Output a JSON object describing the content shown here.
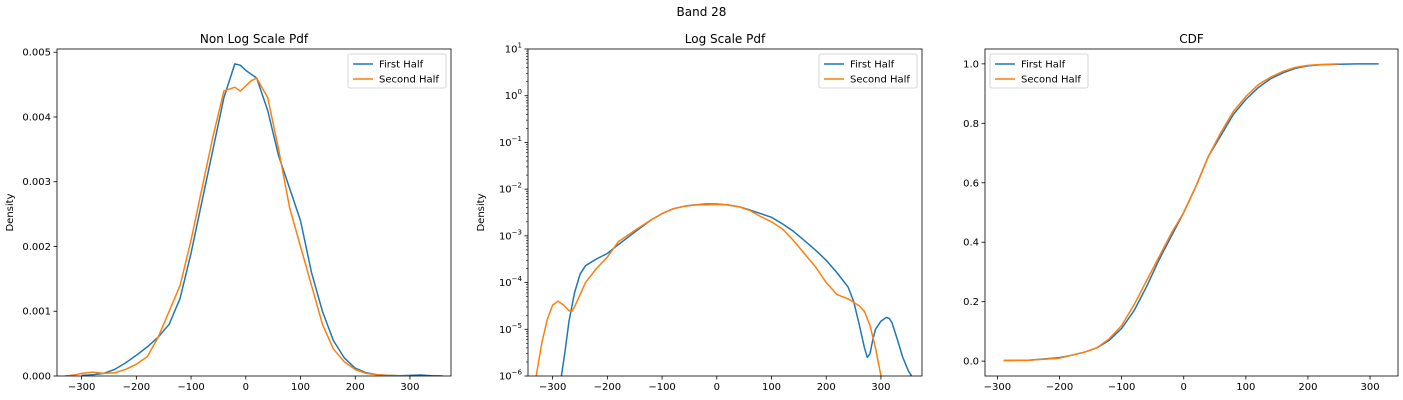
{
  "figure": {
    "title": "Band 28"
  },
  "colors": {
    "first": "#1f77b4",
    "second": "#ff7f0e"
  },
  "chart_data": [
    {
      "type": "line",
      "title": "Non Log Scale Pdf",
      "xlabel": "",
      "ylabel": "Density",
      "xlim": [
        -345,
        375
      ],
      "ylim": [
        0,
        0.00505
      ],
      "yscale": "linear",
      "xticks": [
        -300,
        -200,
        -100,
        0,
        100,
        200,
        300
      ],
      "xtick_labels": [
        "−300",
        "−200",
        "−100",
        "0",
        "100",
        "200",
        "300"
      ],
      "yticks": [
        0,
        0.001,
        0.002,
        0.003,
        0.004,
        0.005
      ],
      "ytick_labels": [
        "0.000",
        "0.001",
        "0.002",
        "0.003",
        "0.004",
        "0.005"
      ],
      "legend": "top-right",
      "series": [
        {
          "name": "First Half",
          "x": [
            -300,
            -280,
            -260,
            -240,
            -220,
            -200,
            -180,
            -160,
            -140,
            -120,
            -100,
            -80,
            -60,
            -40,
            -20,
            -10,
            0,
            10,
            20,
            40,
            60,
            80,
            100,
            120,
            140,
            160,
            180,
            200,
            220,
            240,
            260,
            280,
            300,
            320,
            340,
            360
          ],
          "y": [
            1e-05,
            2e-05,
            4e-05,
            0.0001,
            0.0002,
            0.00032,
            0.00045,
            0.0006,
            0.0008,
            0.0012,
            0.0019,
            0.0027,
            0.0035,
            0.0043,
            0.00482,
            0.0048,
            0.00472,
            0.00466,
            0.0046,
            0.0041,
            0.0034,
            0.0029,
            0.0024,
            0.0016,
            0.001,
            0.00055,
            0.00028,
            0.00012,
            5e-05,
            2e-05,
            1e-05,
            5e-06,
            1e-05,
            1.5e-05,
            5e-06,
            0
          ]
        },
        {
          "name": "Second Half",
          "x": [
            -330,
            -310,
            -300,
            -280,
            -260,
            -240,
            -220,
            -200,
            -180,
            -160,
            -140,
            -120,
            -100,
            -80,
            -60,
            -40,
            -20,
            -10,
            0,
            10,
            20,
            40,
            60,
            80,
            100,
            120,
            140,
            160,
            180,
            200,
            220,
            240,
            260,
            280,
            300
          ],
          "y": [
            0,
            2e-05,
            4e-05,
            6e-05,
            4e-05,
            5e-05,
            0.0001,
            0.00018,
            0.0003,
            0.0006,
            0.001,
            0.0014,
            0.0021,
            0.0029,
            0.0037,
            0.0044,
            0.00446,
            0.0044,
            0.00448,
            0.00456,
            0.0046,
            0.0043,
            0.0035,
            0.0026,
            0.002,
            0.0014,
            0.0008,
            0.00042,
            0.00022,
            0.0001,
            4e-05,
            2e-05,
            1e-05,
            5e-06,
            0
          ]
        }
      ]
    },
    {
      "type": "line",
      "title": "Log Scale Pdf",
      "xlabel": "",
      "ylabel": "Density",
      "xlim": [
        -345,
        375
      ],
      "ylim": [
        1e-06,
        10
      ],
      "yscale": "log",
      "xticks": [
        -300,
        -200,
        -100,
        0,
        100,
        200,
        300
      ],
      "xtick_labels": [
        "−300",
        "−200",
        "−100",
        "0",
        "100",
        "200",
        "300"
      ],
      "yticks": [
        -6,
        -5,
        -4,
        -3,
        -2,
        -1,
        0,
        1
      ],
      "ytick_labels": [
        "−6",
        "−5",
        "−4",
        "−3",
        "−2",
        "−1",
        "0",
        "1"
      ],
      "legend": "top-right",
      "series": [
        {
          "name": "First Half",
          "x": [
            -284,
            -278,
            -270,
            -260,
            -250,
            -240,
            -220,
            -200,
            -180,
            -150,
            -120,
            -100,
            -80,
            -60,
            -40,
            -20,
            0,
            20,
            40,
            60,
            80,
            100,
            120,
            140,
            160,
            180,
            200,
            220,
            240,
            250,
            260,
            270,
            275,
            280,
            285,
            290,
            300,
            310,
            315,
            320,
            330,
            340,
            350,
            356
          ],
          "y": [
            1e-06,
            3e-06,
            1.5e-05,
            6e-05,
            0.00015,
            0.00023,
            0.00032,
            0.00042,
            0.00065,
            0.0012,
            0.0022,
            0.003,
            0.0038,
            0.0043,
            0.0046,
            0.0048,
            0.0048,
            0.0046,
            0.0042,
            0.0036,
            0.003,
            0.0025,
            0.0018,
            0.00125,
            0.0008,
            0.0005,
            0.0003,
            0.00016,
            8e-05,
            4e-05,
            1.3e-05,
            4e-06,
            2.5e-06,
            3e-06,
            6e-06,
            1e-05,
            1.5e-05,
            1.8e-05,
            1.7e-05,
            1.4e-05,
            6e-06,
            2.5e-06,
            1.3e-06,
            1e-06
          ]
        },
        {
          "name": "Second Half",
          "x": [
            -330,
            -320,
            -310,
            -300,
            -290,
            -280,
            -270,
            -265,
            -260,
            -250,
            -240,
            -220,
            -200,
            -180,
            -150,
            -120,
            -100,
            -80,
            -60,
            -40,
            -20,
            0,
            20,
            40,
            60,
            80,
            100,
            120,
            140,
            160,
            180,
            200,
            220,
            240,
            260,
            270,
            280,
            290,
            295,
            300
          ],
          "y": [
            1e-06,
            5e-06,
            1.6e-05,
            3.3e-05,
            4e-05,
            3.3e-05,
            2.5e-05,
            2.4e-05,
            3e-05,
            5.5e-05,
            0.0001,
            0.0002,
            0.00035,
            0.00075,
            0.0013,
            0.0022,
            0.003,
            0.0038,
            0.0043,
            0.0046,
            0.0046,
            0.0047,
            0.0046,
            0.0042,
            0.0035,
            0.0026,
            0.002,
            0.0014,
            0.0008,
            0.00042,
            0.00022,
            0.0001,
            5.5e-05,
            4.5e-05,
            3.2e-05,
            2.4e-05,
            1.2e-05,
            4e-06,
            2e-06,
            1e-06
          ]
        }
      ]
    },
    {
      "type": "line",
      "title": "CDF",
      "xlabel": "",
      "ylabel": "",
      "xlim": [
        -320,
        345
      ],
      "ylim": [
        -0.05,
        1.05
      ],
      "yscale": "linear",
      "xticks": [
        -300,
        -200,
        -100,
        0,
        100,
        200,
        300
      ],
      "xtick_labels": [
        "−300",
        "−200",
        "−100",
        "0",
        "100",
        "200",
        "300"
      ],
      "yticks": [
        0,
        0.2,
        0.4,
        0.6,
        0.8,
        1.0
      ],
      "ytick_labels": [
        "0.0",
        "0.2",
        "0.4",
        "0.6",
        "0.8",
        "1.0"
      ],
      "legend": "top-left",
      "series": [
        {
          "name": "First Half",
          "x": [
            -290,
            -250,
            -200,
            -180,
            -160,
            -140,
            -120,
            -100,
            -80,
            -60,
            -40,
            -20,
            0,
            20,
            40,
            60,
            80,
            100,
            120,
            140,
            160,
            180,
            200,
            220,
            250,
            280,
            314
          ],
          "y": [
            0.002,
            0.003,
            0.012,
            0.02,
            0.03,
            0.045,
            0.07,
            0.11,
            0.17,
            0.25,
            0.34,
            0.42,
            0.5,
            0.59,
            0.69,
            0.76,
            0.83,
            0.88,
            0.92,
            0.95,
            0.97,
            0.985,
            0.993,
            0.997,
            0.999,
            1.0,
            1.0
          ]
        },
        {
          "name": "Second Half",
          "x": [
            -290,
            -250,
            -200,
            -180,
            -160,
            -140,
            -120,
            -100,
            -80,
            -60,
            -40,
            -20,
            0,
            20,
            40,
            60,
            80,
            100,
            120,
            140,
            160,
            180,
            200,
            220,
            250
          ],
          "y": [
            0.002,
            0.003,
            0.01,
            0.02,
            0.03,
            0.045,
            0.075,
            0.12,
            0.19,
            0.27,
            0.35,
            0.43,
            0.5,
            0.59,
            0.69,
            0.77,
            0.84,
            0.89,
            0.93,
            0.955,
            0.975,
            0.988,
            0.995,
            0.998,
            1.0
          ]
        }
      ]
    }
  ]
}
